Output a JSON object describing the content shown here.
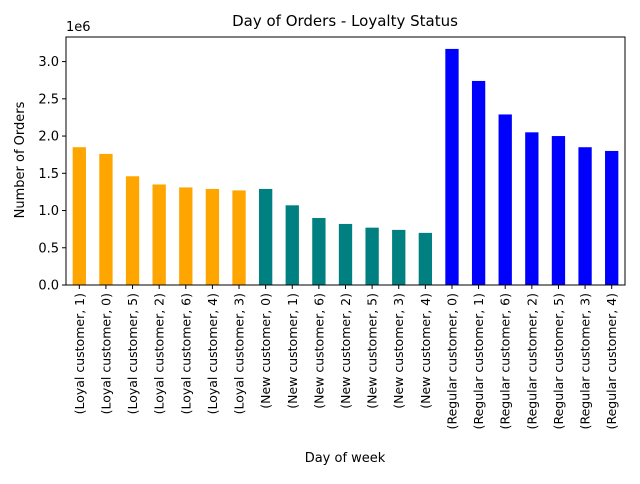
{
  "chart_data": {
    "type": "bar",
    "title": "Day of Orders - Loyalty Status",
    "xlabel": "Day of week",
    "ylabel": "Number of Orders",
    "y_scale_label": "1e6",
    "ylim": [
      0,
      3.33
    ],
    "y_ticks": [
      0.0,
      0.5,
      1.0,
      1.5,
      2.0,
      2.5,
      3.0
    ],
    "y_tick_labels": [
      "0.0",
      "0.5",
      "1.0",
      "1.5",
      "2.0",
      "2.5",
      "3.0"
    ],
    "grid": false,
    "legend": "none",
    "colors": {
      "Loyal customer": "#FFA500",
      "New customer": "#008080",
      "Regular customer": "#0000FF"
    },
    "categories": [
      "(Loyal customer, 1)",
      "(Loyal customer, 0)",
      "(Loyal customer, 5)",
      "(Loyal customer, 2)",
      "(Loyal customer, 6)",
      "(Loyal customer, 4)",
      "(Loyal customer, 3)",
      "(New customer, 0)",
      "(New customer, 1)",
      "(New customer, 6)",
      "(New customer, 2)",
      "(New customer, 5)",
      "(New customer, 3)",
      "(New customer, 4)",
      "(Regular customer, 0)",
      "(Regular customer, 1)",
      "(Regular customer, 6)",
      "(Regular customer, 2)",
      "(Regular customer, 5)",
      "(Regular customer, 3)",
      "(Regular customer, 4)"
    ],
    "groups": [
      "Loyal customer",
      "Loyal customer",
      "Loyal customer",
      "Loyal customer",
      "Loyal customer",
      "Loyal customer",
      "Loyal customer",
      "New customer",
      "New customer",
      "New customer",
      "New customer",
      "New customer",
      "New customer",
      "New customer",
      "Regular customer",
      "Regular customer",
      "Regular customer",
      "Regular customer",
      "Regular customer",
      "Regular customer",
      "Regular customer"
    ],
    "values": [
      1.85,
      1.76,
      1.46,
      1.35,
      1.31,
      1.29,
      1.27,
      1.29,
      1.07,
      0.9,
      0.82,
      0.77,
      0.74,
      0.7,
      3.17,
      2.74,
      2.29,
      2.05,
      2.0,
      1.85,
      1.8
    ]
  }
}
